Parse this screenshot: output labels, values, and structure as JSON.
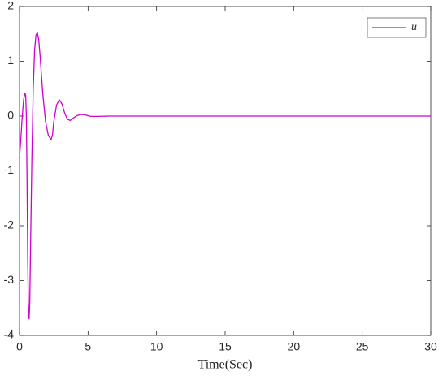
{
  "chart_data": {
    "type": "line",
    "xlabel": "Time(Sec)",
    "x": [
      0,
      0.1,
      0.2,
      0.3,
      0.4,
      0.45,
      0.5,
      0.55,
      0.6,
      0.65,
      0.7,
      0.75,
      0.8,
      0.9,
      1.0,
      1.1,
      1.2,
      1.3,
      1.4,
      1.5,
      1.7,
      1.9,
      2.1,
      2.3,
      2.4,
      2.5,
      2.7,
      2.9,
      3.1,
      3.3,
      3.5,
      3.7,
      3.9,
      4.2,
      4.5,
      4.8,
      5.2,
      5.7,
      6.5,
      10,
      20,
      30
    ],
    "series": [
      {
        "name": "u",
        "color": "#d000d0",
        "values": [
          -0.75,
          -0.4,
          0.0,
          0.3,
          0.42,
          0.38,
          0.0,
          -1.2,
          -2.6,
          -3.5,
          -3.7,
          -3.4,
          -2.5,
          -0.8,
          0.5,
          1.2,
          1.48,
          1.52,
          1.4,
          1.1,
          0.4,
          -0.1,
          -0.35,
          -0.43,
          -0.35,
          -0.1,
          0.2,
          0.3,
          0.22,
          0.05,
          -0.06,
          -0.08,
          -0.04,
          0.01,
          0.03,
          0.02,
          -0.005,
          -0.005,
          0,
          0,
          0,
          0
        ]
      }
    ],
    "xlim": [
      0,
      30
    ],
    "xticks": [
      0,
      5,
      10,
      15,
      20,
      25,
      30
    ],
    "ylim": [
      -4,
      2
    ],
    "yticks": [
      -4,
      -3,
      -2,
      -1,
      0,
      1,
      2
    ],
    "legend": "top-right",
    "grid": false
  }
}
